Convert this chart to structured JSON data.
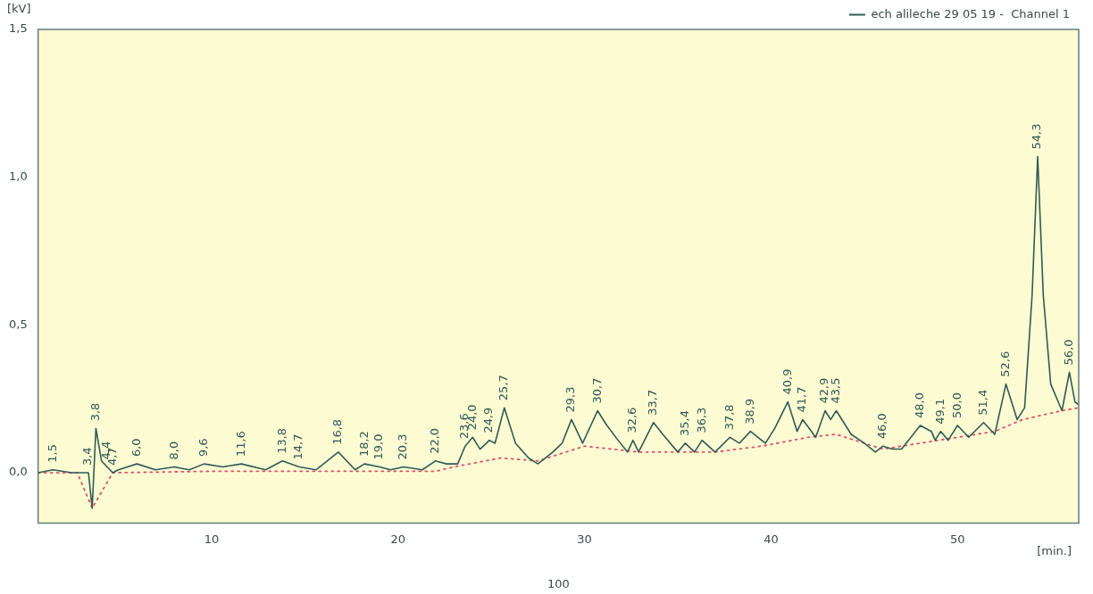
{
  "chart_data": {
    "type": "line",
    "xlabel": "[min.]",
    "ylabel": "[kV]",
    "xlim": [
      0.7,
      56.5
    ],
    "ylim": [
      -0.17,
      1.5
    ],
    "xticks": [
      10,
      20,
      30,
      40,
      50
    ],
    "yticks": [
      {
        "value": 0,
        "label": "0,0"
      },
      {
        "value": 0.5,
        "label": "0,5"
      },
      {
        "value": 1,
        "label": "1,0"
      },
      {
        "value": 1.5,
        "label": "1,5"
      }
    ],
    "grid": false,
    "legend": "top right",
    "marker": "none",
    "series": [
      {
        "name": "ech alileche 29 05 19 -  Channel 1",
        "color": "#2f5b57",
        "line_style": "solid",
        "x": [
          0.7,
          1.5,
          2.5,
          3.2,
          3.4,
          3.6,
          3.8,
          4.1,
          4.4,
          4.7,
          5.0,
          6.0,
          7.0,
          8.0,
          8.8,
          9.6,
          10.6,
          11.6,
          12.9,
          13.8,
          14.7,
          15.6,
          16.8,
          17.7,
          18.2,
          19.0,
          19.6,
          20.3,
          21.3,
          22.0,
          22.6,
          23.2,
          23.6,
          24.0,
          24.4,
          24.9,
          25.2,
          25.7,
          26.3,
          27.0,
          27.5,
          28.3,
          28.8,
          29.3,
          29.9,
          30.7,
          31.2,
          31.8,
          32.3,
          32.6,
          32.9,
          33.7,
          34.2,
          35.0,
          35.4,
          35.9,
          36.3,
          37.0,
          37.8,
          38.3,
          38.9,
          39.3,
          39.7,
          40.2,
          40.9,
          41.4,
          41.7,
          42.4,
          42.9,
          43.2,
          43.5,
          44.3,
          45.0,
          45.6,
          46.0,
          46.5,
          47.0,
          48.0,
          48.6,
          48.8,
          49.1,
          49.5,
          50.0,
          50.6,
          51.4,
          52.0,
          52.6,
          53.2,
          53.6,
          54.0,
          54.3,
          54.6,
          55.0,
          55.6,
          56.0,
          56.3,
          56.5
        ],
        "values": [
          0,
          0.01,
          0,
          0,
          0,
          -0.12,
          0.15,
          0.04,
          0.02,
          0,
          0.01,
          0.03,
          0.01,
          0.02,
          0.01,
          0.03,
          0.02,
          0.03,
          0.01,
          0.04,
          0.02,
          0.01,
          0.07,
          0.01,
          0.03,
          0.02,
          0.01,
          0.02,
          0.01,
          0.04,
          0.03,
          0.03,
          0.09,
          0.12,
          0.08,
          0.11,
          0.1,
          0.22,
          0.1,
          0.05,
          0.03,
          0.07,
          0.1,
          0.18,
          0.1,
          0.21,
          0.16,
          0.11,
          0.07,
          0.11,
          0.07,
          0.17,
          0.13,
          0.07,
          0.1,
          0.07,
          0.11,
          0.07,
          0.12,
          0.1,
          0.14,
          0.12,
          0.1,
          0.15,
          0.24,
          0.14,
          0.18,
          0.12,
          0.21,
          0.18,
          0.21,
          0.13,
          0.1,
          0.07,
          0.09,
          0.08,
          0.08,
          0.16,
          0.14,
          0.11,
          0.14,
          0.11,
          0.16,
          0.12,
          0.17,
          0.13,
          0.3,
          0.18,
          0.22,
          0.6,
          1.07,
          0.6,
          0.3,
          0.21,
          0.34,
          0.24,
          0.23
        ]
      },
      {
        "color": "#e0506a",
        "line_style": "dotted",
        "x": [
          0.7,
          2.8,
          3.6,
          4.7,
          10,
          22,
          23,
          25.5,
          27.5,
          30,
          33,
          37,
          39.5,
          42,
          43.5,
          46,
          47,
          50,
          52,
          53.5,
          55.6,
          56.5
        ],
        "values": [
          0,
          0,
          -0.12,
          0,
          0.005,
          0.005,
          0.02,
          0.05,
          0.04,
          0.09,
          0.07,
          0.07,
          0.09,
          0.12,
          0.13,
          0.08,
          0.09,
          0.12,
          0.14,
          0.18,
          0.21,
          0.22
        ]
      }
    ],
    "annotations": [
      {
        "text": "1,5",
        "x": 1.5,
        "y": 0.01
      },
      {
        "text": "3,4",
        "x": 3.4,
        "y": 0
      },
      {
        "text": "3,8",
        "x": 3.8,
        "y": 0.15
      },
      {
        "text": "4,4",
        "x": 4.4,
        "y": 0.02
      },
      {
        "text": "4,7",
        "x": 4.7,
        "y": 0
      },
      {
        "text": "6,0",
        "x": 6.0,
        "y": 0.03
      },
      {
        "text": "8,0",
        "x": 8.0,
        "y": 0.02
      },
      {
        "text": "9,6",
        "x": 9.6,
        "y": 0.03
      },
      {
        "text": "11,6",
        "x": 11.6,
        "y": 0.03
      },
      {
        "text": "13,8",
        "x": 13.8,
        "y": 0.04
      },
      {
        "text": "14,7",
        "x": 14.7,
        "y": 0.02
      },
      {
        "text": "16,8",
        "x": 16.8,
        "y": 0.07
      },
      {
        "text": "18,2",
        "x": 18.2,
        "y": 0.03
      },
      {
        "text": "19,0",
        "x": 19.0,
        "y": 0.02
      },
      {
        "text": "20,3",
        "x": 20.3,
        "y": 0.02
      },
      {
        "text": "22,0",
        "x": 22.0,
        "y": 0.04
      },
      {
        "text": "23,6",
        "x": 23.6,
        "y": 0.09
      },
      {
        "text": "24,0",
        "x": 24.0,
        "y": 0.12
      },
      {
        "text": "24,9",
        "x": 24.9,
        "y": 0.11
      },
      {
        "text": "25,7",
        "x": 25.7,
        "y": 0.22
      },
      {
        "text": "29,3",
        "x": 29.3,
        "y": 0.18
      },
      {
        "text": "30,7",
        "x": 30.7,
        "y": 0.21
      },
      {
        "text": "32,6",
        "x": 32.6,
        "y": 0.11
      },
      {
        "text": "33,7",
        "x": 33.7,
        "y": 0.17
      },
      {
        "text": "35,4",
        "x": 35.4,
        "y": 0.1
      },
      {
        "text": "36,3",
        "x": 36.3,
        "y": 0.11
      },
      {
        "text": "37,8",
        "x": 37.8,
        "y": 0.12
      },
      {
        "text": "38,9",
        "x": 38.9,
        "y": 0.14
      },
      {
        "text": "40,9",
        "x": 40.9,
        "y": 0.24
      },
      {
        "text": "41,7",
        "x": 41.7,
        "y": 0.18
      },
      {
        "text": "42,9",
        "x": 42.9,
        "y": 0.21
      },
      {
        "text": "43,5",
        "x": 43.5,
        "y": 0.21
      },
      {
        "text": "46,0",
        "x": 46.0,
        "y": 0.09
      },
      {
        "text": "48,0",
        "x": 48.0,
        "y": 0.16
      },
      {
        "text": "49,1",
        "x": 49.1,
        "y": 0.14
      },
      {
        "text": "50,0",
        "x": 50.0,
        "y": 0.16
      },
      {
        "text": "51,4",
        "x": 51.4,
        "y": 0.17
      },
      {
        "text": "52,6",
        "x": 52.6,
        "y": 0.3
      },
      {
        "text": "54,3",
        "x": 54.3,
        "y": 1.07
      },
      {
        "text": "56,0",
        "x": 56.0,
        "y": 0.34
      },
      "100"
    ]
  }
}
